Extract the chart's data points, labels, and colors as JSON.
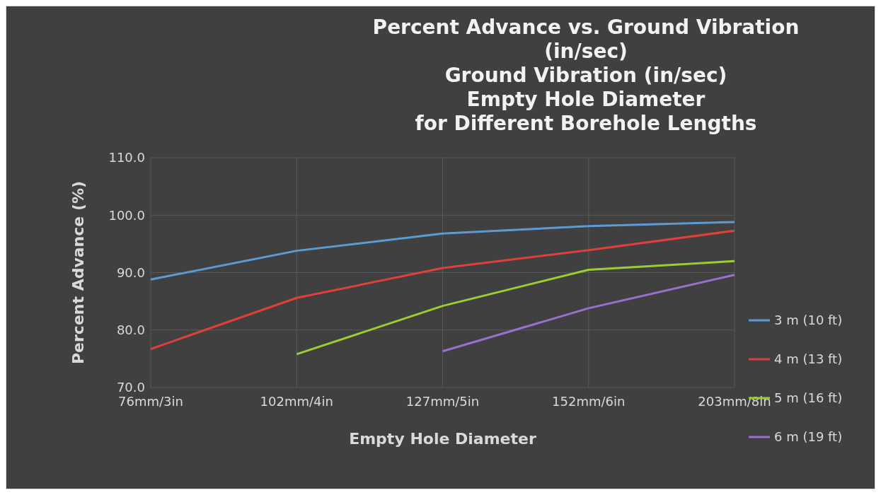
{
  "chart_data": {
    "type": "line",
    "title": "Percent Advance vs. Ground Vibration\n(in/sec)\nGround Vibration (in/sec)\nEmpty Hole Diameter\nfor Different Borehole Lengths",
    "xlabel": "Empty Hole Diameter",
    "ylabel": "Percent Advance (%)",
    "categories": [
      "76mm/3in",
      "102mm/4in",
      "127mm/5in",
      "152mm/6in",
      "203mm/8in"
    ],
    "series": [
      {
        "name": "3 m (10 ft)",
        "color": "#5b9bd5",
        "values": [
          88.8,
          93.8,
          96.8,
          98.1,
          98.8
        ]
      },
      {
        "name": "4 m (13 ft)",
        "color": "#e0403a",
        "values": [
          76.7,
          85.6,
          90.8,
          93.9,
          97.3
        ]
      },
      {
        "name": "5 m (16 ft)",
        "color": "#9acd32",
        "values": [
          null,
          75.8,
          84.2,
          90.5,
          92.0
        ]
      },
      {
        "name": "6 m (19 ft)",
        "color": "#9b6fd0",
        "values": [
          null,
          null,
          76.3,
          83.8,
          89.6
        ]
      }
    ],
    "ylim": [
      70,
      110
    ],
    "yticks": [
      {
        "value": 70,
        "label": "70.0"
      },
      {
        "value": 80,
        "label": "80.0"
      },
      {
        "value": 90,
        "label": "90.0"
      },
      {
        "value": 100,
        "label": "100.0"
      },
      {
        "value": 110,
        "label": "110.0"
      }
    ],
    "grid": true,
    "legend": "right",
    "marker": "none",
    "line_style": "solid"
  }
}
